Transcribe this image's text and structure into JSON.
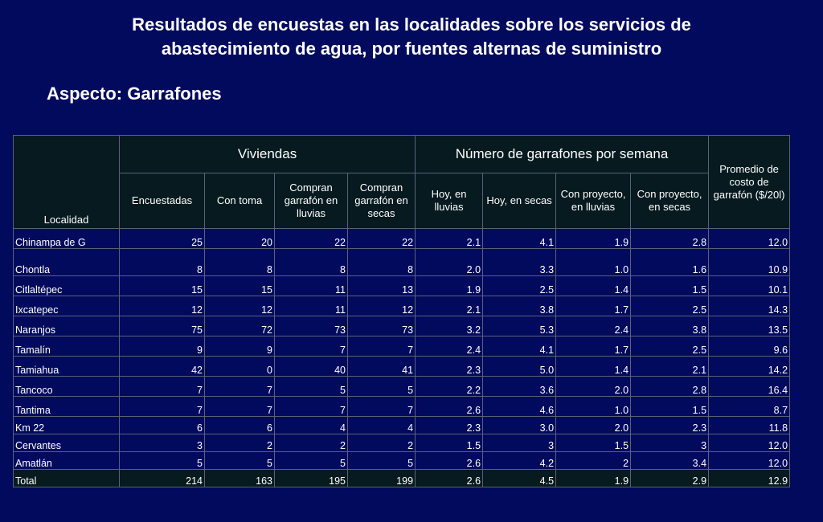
{
  "title_line1": "Resultados de encuestas en las localidades sobre los servicios de",
  "title_line2": "abastecimiento de agua, por fuentes alternas de suministro",
  "subtitle": "Aspecto: Garrafones",
  "table": {
    "group_viviendas": "Viviendas",
    "group_garrafones": "Número de garrafones por semana",
    "col_localidad": "Localidad",
    "col_promedio": "Promedio de costo de garrafón ($/20l)",
    "col_encuestadas": "Encuestadas",
    "col_con_toma": "Con toma",
    "col_compran_lluvias": "Compran garrafón en lluvias",
    "col_compran_secas": "Compran garrafón en secas",
    "col_hoy_lluvias": "Hoy, en lluvias",
    "col_hoy_secas": "Hoy, en secas",
    "col_proy_lluvias": "Con proyecto, en lluvias",
    "col_proy_secas": "Con proyecto, en secas",
    "rows": [
      [
        "Chinampa de G",
        "25",
        "20",
        "22",
        "22",
        "2.1",
        "4.1",
        "1.9",
        "2.8",
        "12.0"
      ],
      [
        "Chontla",
        "8",
        "8",
        "8",
        "8",
        "2.0",
        "3.3",
        "1.0",
        "1.6",
        "10.9"
      ],
      [
        "Citlaltépec",
        "15",
        "15",
        "11",
        "13",
        "1.9",
        "2.5",
        "1.4",
        "1.5",
        "10.1"
      ],
      [
        "Ixcatepec",
        "12",
        "12",
        "11",
        "12",
        "2.1",
        "3.8",
        "1.7",
        "2.5",
        "14.3"
      ],
      [
        "Naranjos",
        "75",
        "72",
        "73",
        "73",
        "3.2",
        "5.3",
        "2.4",
        "3.8",
        "13.5"
      ],
      [
        "Tamalín",
        "9",
        "9",
        "7",
        "7",
        "2.4",
        "4.1",
        "1.7",
        "2.5",
        "9.6"
      ],
      [
        "Tamiahua",
        "42",
        "0",
        "40",
        "41",
        "2.3",
        "5.0",
        "1.4",
        "2.1",
        "14.2"
      ],
      [
        "Tancoco",
        "7",
        "7",
        "5",
        "5",
        "2.2",
        "3.6",
        "2.0",
        "2.8",
        "16.4"
      ],
      [
        "Tantima",
        "7",
        "7",
        "7",
        "7",
        "2.6",
        "4.6",
        "1.0",
        "1.5",
        "8.7"
      ],
      [
        "Km 22",
        "6",
        "6",
        "4",
        "4",
        "2.3",
        "3.0",
        "2.0",
        "2.3",
        "11.8"
      ],
      [
        "Cervantes",
        "3",
        "2",
        "2",
        "2",
        "1.5",
        "3",
        "1.5",
        "3",
        "12.0"
      ],
      [
        "Amatlán",
        "5",
        "5",
        "5",
        "5",
        "2.6",
        "4.2",
        "2",
        "3.4",
        "12.0"
      ]
    ],
    "total": [
      "Total",
      "214",
      "163",
      "195",
      "199",
      "2.6",
      "4.5",
      "1.9",
      "2.9",
      "12.9"
    ]
  }
}
